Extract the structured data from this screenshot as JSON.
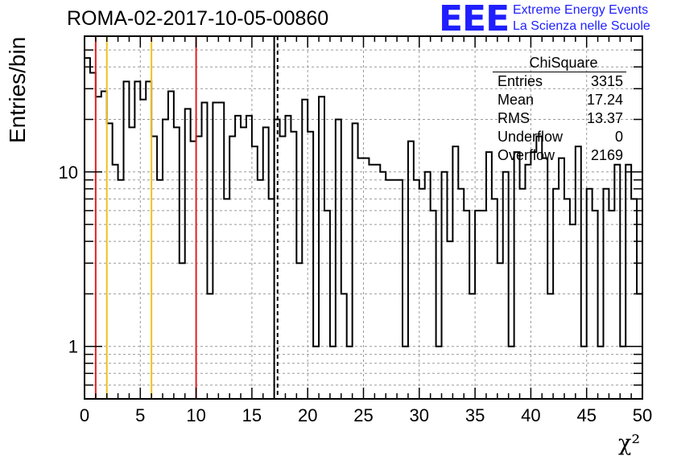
{
  "header": {
    "title": "ROMA-02-2017-10-05-00860",
    "logo_text": "EEE",
    "logo_line1": "Extreme Energy Events",
    "logo_line2": "La Scienza nelle Scuole"
  },
  "stats_box": {
    "title": "ChiSquare",
    "rows": [
      {
        "label": "Entries",
        "value": "3315"
      },
      {
        "label": "Mean",
        "value": "17.24"
      },
      {
        "label": "RMS",
        "value": "13.37"
      },
      {
        "label": "Underflow",
        "value": "0"
      },
      {
        "label": "Overflow",
        "value": "2169"
      }
    ]
  },
  "chart_data": {
    "type": "bar",
    "histogram": true,
    "ylabel": "Entries/bin",
    "xlabel": "χ²",
    "xlim": [
      0,
      50
    ],
    "ylim": [
      0.5,
      60
    ],
    "yscale": "log",
    "grid": true,
    "bin_width": 0.5,
    "x_ticks": [
      0,
      5,
      10,
      15,
      20,
      25,
      30,
      35,
      40,
      45,
      50
    ],
    "x_tick_labels": [
      "0",
      "5",
      "10",
      "15",
      "20",
      "25",
      "30",
      "35",
      "40",
      "45",
      "50"
    ],
    "y_ticks": [
      1,
      10
    ],
    "y_tick_labels": [
      "1",
      "10"
    ],
    "values": [
      45,
      37,
      27,
      29,
      19,
      11,
      9,
      33,
      18,
      33,
      26,
      33,
      16,
      9,
      20,
      29,
      18,
      3,
      23,
      15,
      16,
      25,
      2,
      25,
      25,
      7,
      16,
      21,
      18,
      21,
      14,
      9,
      18,
      7,
      20,
      16,
      21,
      17,
      3,
      26,
      17,
      1,
      27,
      6,
      1,
      20,
      2,
      1,
      19,
      12,
      12,
      11,
      11,
      10,
      9,
      9,
      9,
      1,
      15,
      9,
      8,
      10,
      6,
      1,
      10,
      4,
      14,
      8,
      6,
      2,
      6,
      6,
      13,
      7,
      3,
      10,
      1,
      13,
      8,
      11,
      13,
      16,
      12,
      2,
      8,
      12,
      7,
      5,
      14,
      1,
      8,
      6,
      1,
      8,
      6,
      11,
      1,
      11,
      7,
      2
    ],
    "colors": {
      "hist": "#000000",
      "red": "#e02020",
      "yellow": "#f0c020",
      "dashed": "#000000",
      "mean": "#000000"
    },
    "vlines": [
      {
        "x": 1,
        "color": "red"
      },
      {
        "x": 10,
        "color": "red"
      },
      {
        "x": 2,
        "color": "yellow"
      },
      {
        "x": 6,
        "color": "yellow"
      },
      {
        "x": 17,
        "color": "mean"
      },
      {
        "x": 17.3,
        "color": "dashed"
      }
    ]
  }
}
